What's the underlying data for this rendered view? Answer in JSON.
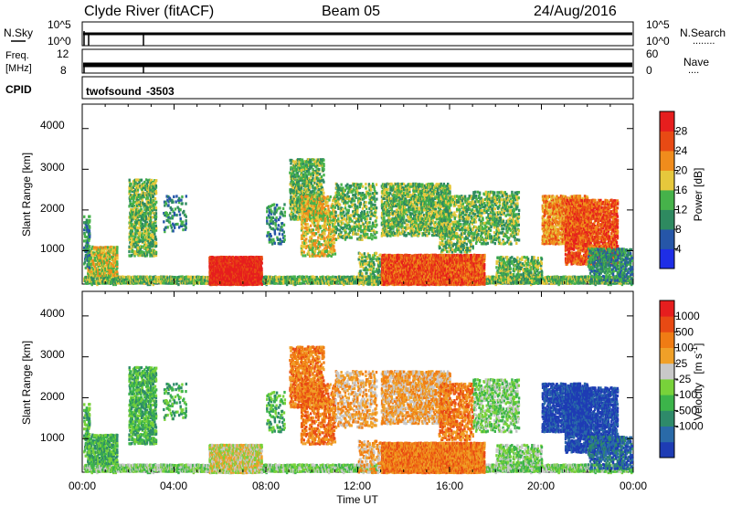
{
  "header": {
    "station": "Clyde River (fitACF)",
    "beam": "Beam 05",
    "date": "24/Aug/2016"
  },
  "noise_panel": {
    "left_label": "N.Sky",
    "left_ticks": [
      "10^5",
      "10^0"
    ],
    "right_ticks": [
      "10^5",
      "10^0"
    ],
    "right_label": "N.Search",
    "right_label_marker": "........"
  },
  "freq_panel": {
    "left_label_1": "Freq.",
    "left_label_2": "[MHz]",
    "left_ticks": [
      "12",
      "8"
    ],
    "right_ticks": [
      "60",
      "0"
    ],
    "right_label": "Nave",
    "right_label_marker": "...."
  },
  "cpid_panel": {
    "label": "CPID",
    "program": "twofsound",
    "id": "-3503"
  },
  "chart_data": [
    {
      "type": "heatmap",
      "name": "power",
      "ylabel": "Slant Range [km]",
      "yticks": [
        "1000",
        "2000",
        "3000",
        "4000"
      ],
      "ylim": [
        180,
        4600
      ],
      "xlim": [
        "00:00",
        "24:00"
      ],
      "colorbar": {
        "label": "Power [dB]",
        "ticks": [
          "4",
          "8",
          "12",
          "16",
          "20",
          "24",
          "28"
        ],
        "range": [
          0,
          32
        ],
        "colors": [
          "#1e2ee6",
          "#2656a8",
          "#2e8a60",
          "#46b24a",
          "#e6c83c",
          "#f08c1c",
          "#e84a14",
          "#e61e1e"
        ]
      }
    },
    {
      "type": "heatmap",
      "name": "velocity",
      "ylabel": "Slant Range [km]",
      "ylabel_unit": "[m s-1]",
      "yticks": [
        "1000",
        "2000",
        "3000",
        "4000"
      ],
      "ylim": [
        180,
        4600
      ],
      "xlim": [
        "00:00",
        "24:00"
      ],
      "colorbar": {
        "label": "Velocity",
        "unit_text": "[m s",
        "unit_exp": "-1",
        "unit_close": "]",
        "ticks": [
          "1000",
          "500",
          "100",
          "25",
          "-25",
          "-100",
          "-500",
          "-1000"
        ],
        "colors": [
          "#1e3cb4",
          "#2a6aa8",
          "#2e8a6a",
          "#3cb44a",
          "#78d23a",
          "#c8c8c8",
          "#f0a028",
          "#f07c14",
          "#e84a14",
          "#e61e1e"
        ]
      }
    }
  ],
  "time_axis": {
    "xlabel": "Time UT",
    "ticks": [
      "00:00",
      "04:00",
      "08:00",
      "12:00",
      "16:00",
      "20:00",
      "00:00"
    ]
  }
}
